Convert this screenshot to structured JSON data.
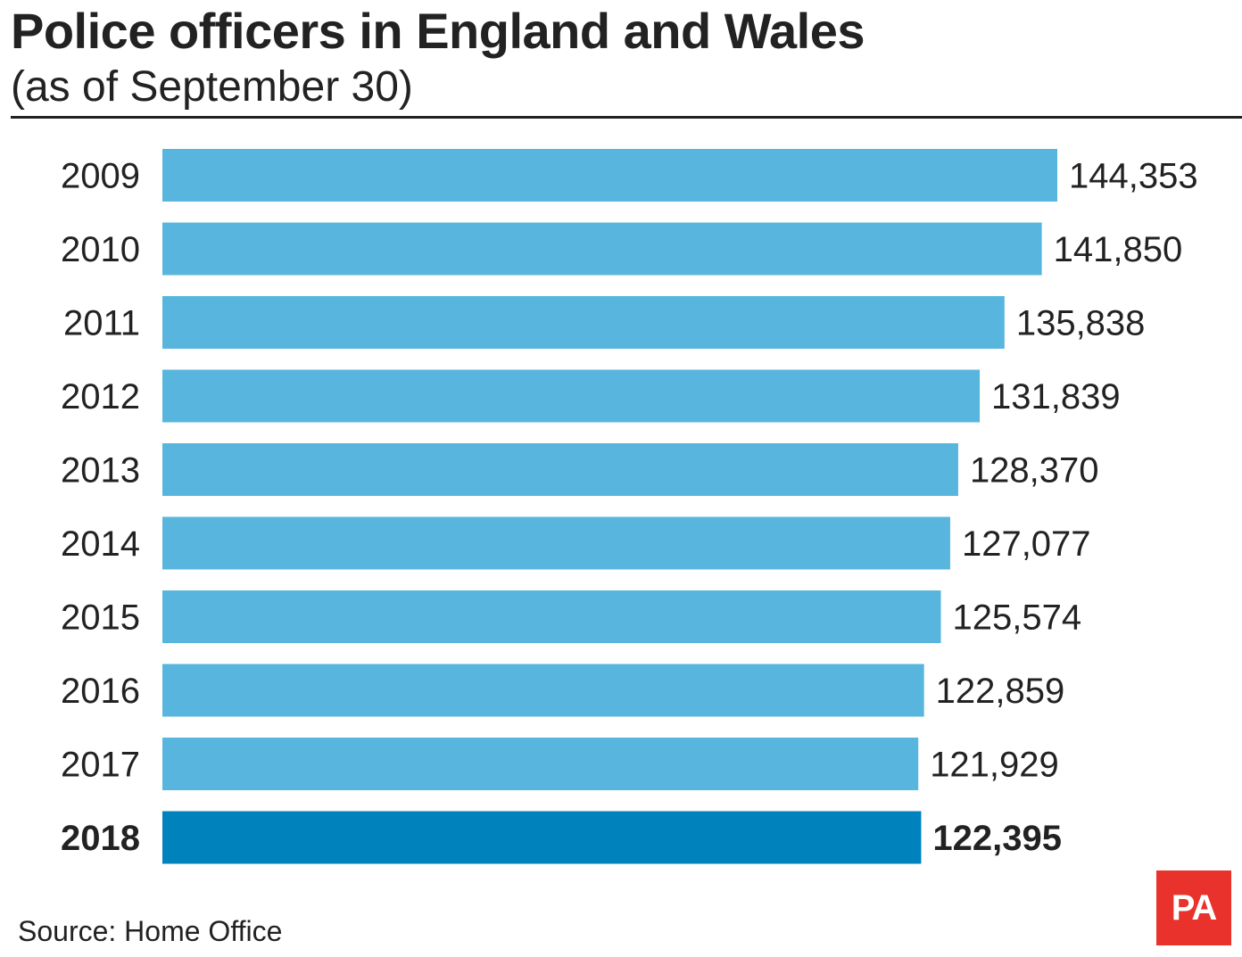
{
  "header": {
    "title": "Police officers in England and Wales",
    "subtitle": "(as of September 30)"
  },
  "footer": {
    "source": "Source: Home Office",
    "logo_text": "PA"
  },
  "colors": {
    "bar": "#58b5de",
    "bar_highlight": "#0082bd",
    "logo": "#e8322b"
  },
  "chart_data": {
    "type": "bar",
    "orientation": "horizontal",
    "title": "Police officers in England and Wales",
    "subtitle": "(as of September 30)",
    "categories": [
      "2009",
      "2010",
      "2011",
      "2012",
      "2013",
      "2014",
      "2015",
      "2016",
      "2017",
      "2018"
    ],
    "values": [
      144353,
      141850,
      135838,
      131839,
      128370,
      127077,
      125574,
      122859,
      121929,
      122395
    ],
    "value_labels": [
      "144,353",
      "141,850",
      "135,838",
      "131,839",
      "128,370",
      "127,077",
      "125,574",
      "122,859",
      "121,929",
      "122,395"
    ],
    "highlight_category": "2018",
    "xlim": [
      0,
      144353
    ],
    "grid": false,
    "legend": "none"
  }
}
